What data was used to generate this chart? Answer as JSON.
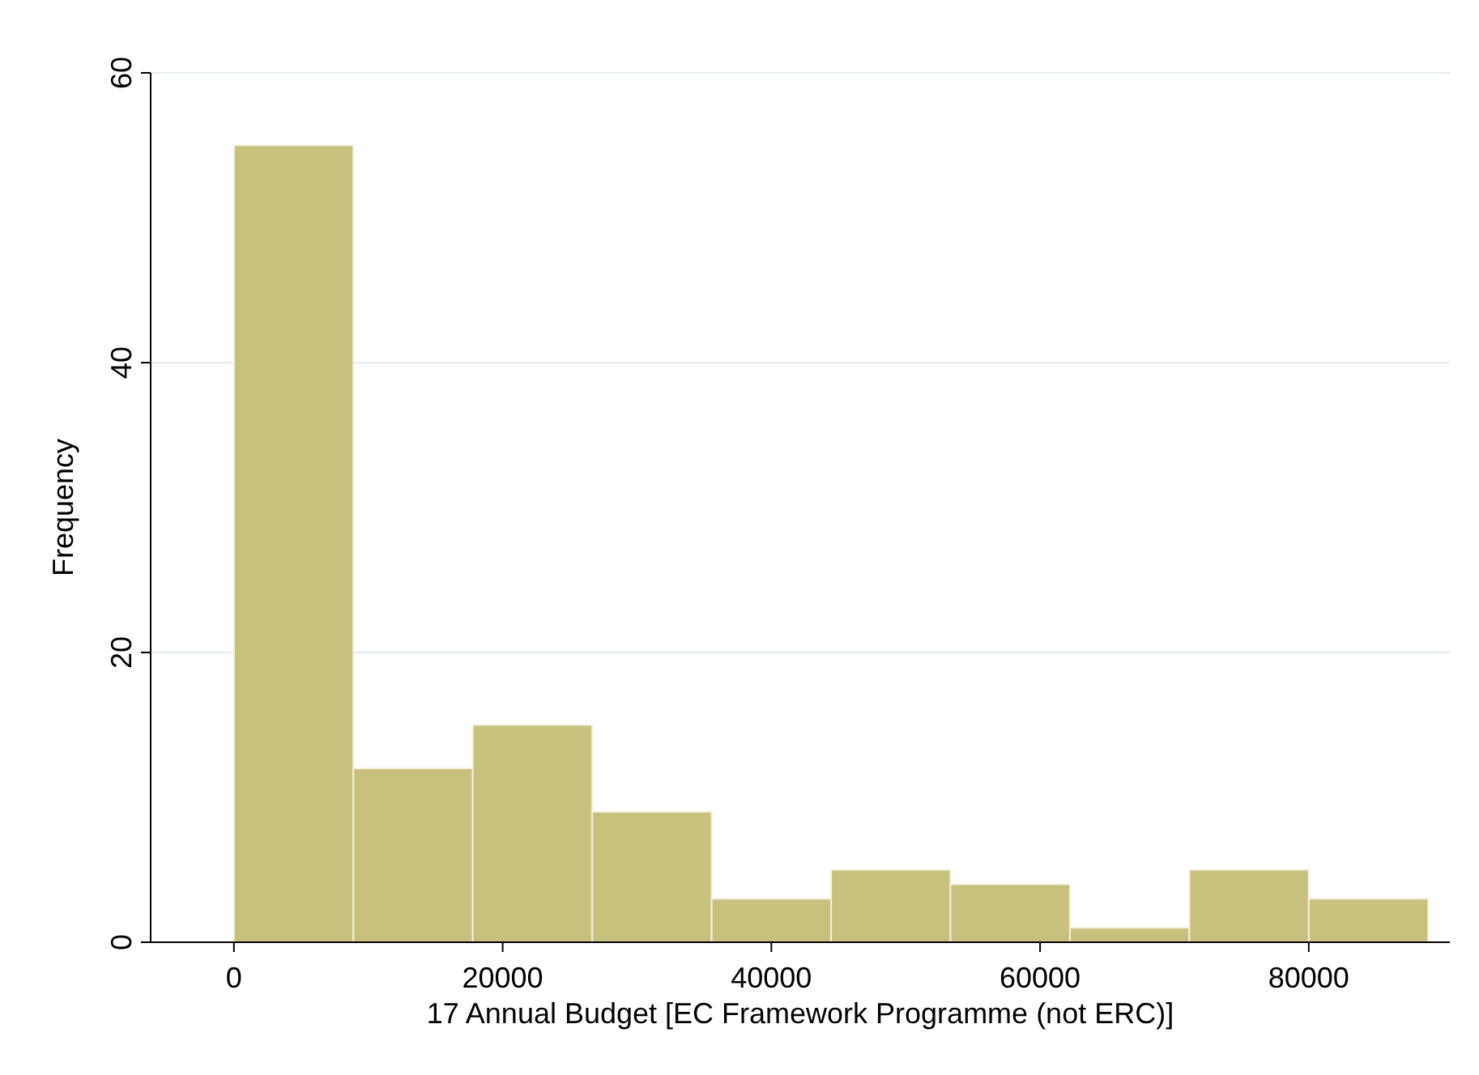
{
  "chart_data": {
    "type": "histogram",
    "xlabel": "17 Annual Budget [EC Framework Programme (not ERC)]",
    "ylabel": "Frequency",
    "bins": [
      0,
      8889,
      17778,
      26667,
      35556,
      44445,
      53334,
      62223,
      71112,
      80001,
      88890
    ],
    "values": [
      55,
      12,
      15,
      9,
      3,
      5,
      4,
      1,
      5,
      3
    ],
    "color": "#c8c07d",
    "xlim": [
      -6200,
      90500
    ],
    "xticks": [
      0,
      20000,
      40000,
      60000,
      80000
    ],
    "ylim": [
      0,
      60
    ],
    "yticks": [
      0,
      20,
      40,
      60
    ],
    "grid": "y"
  }
}
